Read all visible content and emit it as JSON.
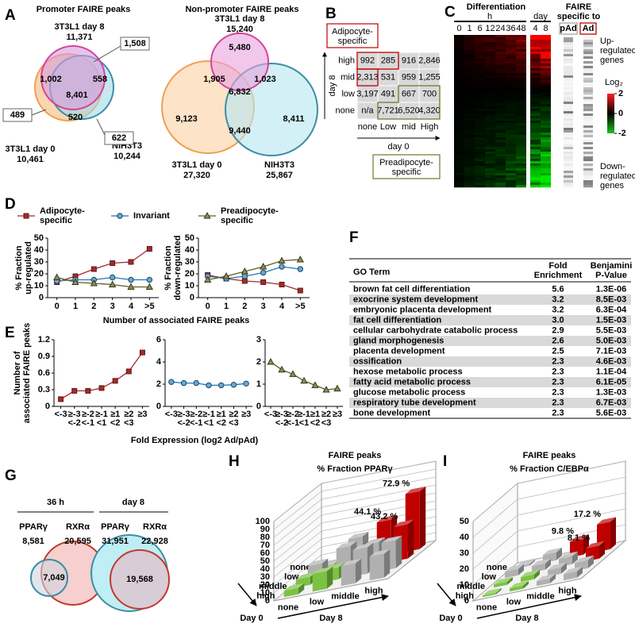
{
  "panel_labels": [
    "A",
    "B",
    "C",
    "D",
    "E",
    "F",
    "G",
    "H",
    "I"
  ],
  "venn_a": {
    "promoter": {
      "title": "Promoter FAIRE peaks",
      "sets": [
        {
          "name": "3T3L1 day 8",
          "count": "11,371"
        },
        {
          "name": "3T3L1 day 0",
          "count": "10,461"
        },
        {
          "name": "NIH3T3",
          "count": "10,244"
        }
      ],
      "regions": [
        "1,508",
        "1,002",
        "558",
        "8,401",
        "489",
        "520",
        "622"
      ]
    },
    "non_promoter": {
      "title": "Non-promoter FAIRE peaks",
      "sets": [
        {
          "name": "3T3L1 day 8",
          "count": "15,240"
        },
        {
          "name": "3T3L1 day 0",
          "count": "27,320"
        },
        {
          "name": "NIH3T3",
          "count": "25,867"
        }
      ],
      "regions": [
        "5,480",
        "1,905",
        "1,023",
        "6,832",
        "9,123",
        "9,440",
        "8,411"
      ]
    }
  },
  "table_b": {
    "row_axis": "day 8",
    "col_axis": "day 0",
    "rows": [
      "high",
      "mid",
      "low",
      "none"
    ],
    "columns": [
      "none",
      "Low",
      "mid",
      "High"
    ],
    "cells": [
      [
        "992",
        "285",
        "916",
        "2,846"
      ],
      [
        "2,313",
        "531",
        "959",
        "1,255"
      ],
      [
        "3,197",
        "491",
        "667",
        "700"
      ],
      [
        "n/a",
        "7,721",
        "6,520",
        "4,320"
      ]
    ],
    "adipocyte_label": "Adipocyte-specific",
    "preadipocyte_label": "Preadipocyte-specific"
  },
  "heatmap_c": {
    "title": "Differentiation",
    "hour_unit": "h",
    "hours": [
      "0",
      "1",
      "6",
      "12",
      "24",
      "36",
      "48"
    ],
    "day_unit": "day",
    "days": [
      "4",
      "8"
    ],
    "faire_title": [
      "FAIRE",
      "specific to"
    ],
    "faire_columns": [
      "pAd",
      "Ad"
    ],
    "top_note": [
      "Up-",
      "regulated",
      "genes"
    ],
    "bottom_note": [
      "Down-",
      "regulated",
      "genes"
    ],
    "colorbar": {
      "label": "Log₂",
      "ticks": [
        2,
        0,
        -2
      ]
    }
  },
  "table_f": {
    "header": [
      [
        "GO Term"
      ],
      [
        "Fold",
        "Enrichment"
      ],
      [
        "Benjamini",
        "P-Value"
      ]
    ],
    "rows": [
      [
        "brown fat cell differentiation",
        "5.6",
        "1.3E-06"
      ],
      [
        "exocrine system development",
        "3.2",
        "8.5E-03"
      ],
      [
        "embryonic placenta development",
        "3.2",
        "6.3E-04"
      ],
      [
        "fat cell differentiation",
        "3.0",
        "1.5E-03"
      ],
      [
        "cellular carbohydrate catabolic process",
        "2.9",
        "5.5E-03"
      ],
      [
        "gland morphogenesis",
        "2.6",
        "5.0E-03"
      ],
      [
        "placenta development",
        "2.5",
        "7.1E-03"
      ],
      [
        "ossification",
        "2.3",
        "4.6E-03"
      ],
      [
        "hexose metabolic process",
        "2.3",
        "1.1E-04"
      ],
      [
        "fatty acid metabolic process",
        "2.3",
        "6.1E-05"
      ],
      [
        "glucose metabolic process",
        "2.3",
        "1.3E-03"
      ],
      [
        "respiratory tube development",
        "2.3",
        "6.7E-03"
      ],
      [
        "bone development",
        "2.3",
        "5.6E-03"
      ]
    ]
  },
  "venn_g": {
    "groups": [
      {
        "title": "36 h",
        "sets": [
          {
            "name": "PPARγ",
            "count": "8,581"
          },
          {
            "name": "RXRα",
            "count": "20,595"
          }
        ],
        "overlap": "7,049"
      },
      {
        "title": "day 8",
        "sets": [
          {
            "name": "PPARγ",
            "count": "31,951"
          },
          {
            "name": "RXRα",
            "count": "22,928"
          }
        ],
        "overlap": "19,568"
      }
    ]
  },
  "chart_data": [
    {
      "type": "line",
      "categories": [
        "0",
        "1",
        "2",
        "3",
        "4",
        ">5"
      ],
      "ylim": [
        0,
        50
      ],
      "yticks": [
        0,
        10,
        20,
        30,
        40,
        50
      ],
      "ylabel": [
        "% Fraction",
        "up-regulated"
      ],
      "xlabel": "Number of associated FAIRE peaks",
      "series": [
        {
          "name": "Adipocyte-specific",
          "color": "#a52a2a",
          "marker": "square",
          "values": [
            13,
            18,
            24,
            29,
            30,
            41
          ]
        },
        {
          "name": "Invariant",
          "color": "#1f78b4",
          "marker": "circle",
          "values": [
            14,
            15,
            15,
            17,
            15,
            15
          ]
        },
        {
          "name": "Preadipocyte-specific",
          "color": "#5c5c1f",
          "marker": "triangle",
          "values": [
            17,
            13,
            12,
            11,
            9,
            9
          ]
        }
      ]
    },
    {
      "type": "line",
      "categories": [
        "0",
        "1",
        "2",
        "3",
        "4",
        ">5"
      ],
      "ylim": [
        0,
        50
      ],
      "yticks": [
        0,
        10,
        20,
        30,
        40,
        50
      ],
      "ylabel": [
        "% Fraction",
        "down-regulated"
      ],
      "series": [
        {
          "color": "#a52a2a",
          "marker": "square",
          "values": [
            19,
            16,
            14,
            13,
            11,
            6
          ]
        },
        {
          "color": "#1f78b4",
          "marker": "circle",
          "values": [
            18,
            16,
            18,
            21,
            26,
            24
          ]
        },
        {
          "color": "#5c5c1f",
          "marker": "triangle",
          "values": [
            15,
            18,
            22,
            26,
            31,
            32
          ]
        }
      ]
    },
    {
      "type": "line",
      "categories": [
        [
          "<-3"
        ],
        [
          "≥-3",
          "<-2"
        ],
        [
          "≥-2",
          "<-1"
        ],
        [
          "≥-1",
          "<1"
        ],
        [
          "≥1",
          "<2"
        ],
        [
          "≥2",
          "<3"
        ],
        [
          "≥3"
        ]
      ],
      "ylim": [
        0,
        1.2
      ],
      "yticks": [
        0,
        0.3,
        0.6,
        0.9,
        1.2
      ],
      "ylabel": [
        "Number of",
        "associated FAIRE peaks"
      ],
      "xlabel": "Fold Expression (log2 Ad/pAd)",
      "series": [
        {
          "color": "#a52a2a",
          "marker": "square",
          "values": [
            0.13,
            0.28,
            0.28,
            0.33,
            0.46,
            0.63,
            0.97
          ]
        }
      ]
    },
    {
      "type": "line",
      "categories": [
        [
          "<-3"
        ],
        [
          "≥-3",
          "<-2"
        ],
        [
          "≥-2",
          "<-1"
        ],
        [
          "≥-1",
          "<1"
        ],
        [
          "≥1",
          "<2"
        ],
        [
          "≥2",
          "<3"
        ],
        [
          "≥3"
        ]
      ],
      "ylim": [
        0,
        6
      ],
      "yticks": [
        0,
        2,
        4,
        6
      ],
      "series": [
        {
          "color": "#1f78b4",
          "marker": "circle",
          "values": [
            2.2,
            2.1,
            2.1,
            1.9,
            1.9,
            1.95,
            2.05
          ]
        }
      ]
    },
    {
      "type": "line",
      "categories": [
        [
          "<-3"
        ],
        [
          "≥-3",
          "<-2"
        ],
        [
          "≥-2",
          "<-1"
        ],
        [
          "≥-1",
          "<1"
        ],
        [
          "≥1",
          "<2"
        ],
        [
          "≥2",
          "<3"
        ],
        [
          "≥3"
        ]
      ],
      "ylim": [
        0,
        3
      ],
      "yticks": [
        0,
        1,
        2,
        3
      ],
      "series": [
        {
          "color": "#5c5c1f",
          "marker": "triangle",
          "values": [
            2.0,
            1.65,
            1.45,
            1.15,
            0.95,
            0.75,
            0.8
          ]
        }
      ]
    },
    {
      "type": "bar3d",
      "title": "FAIRE peaks",
      "subtitle": "% Fraction PPARγ",
      "xlabel": "Day 8",
      "ylabel": "Day 0",
      "categories": [
        "none",
        "low",
        "middle",
        "high"
      ],
      "zlim": [
        0,
        100
      ],
      "zticks": [
        0,
        10,
        20,
        30,
        40,
        50,
        60,
        70,
        80,
        90,
        100
      ],
      "series": [
        {
          "name": "none",
          "values": [
            2,
            30,
            44.1,
            72.9
          ],
          "value_labels": [
            null,
            null,
            "44.1 %",
            "72.9 %"
          ],
          "colors": [
            "#b0b0b0",
            "#b0b0b0",
            "#c00000",
            "#c00000"
          ]
        },
        {
          "name": "low",
          "values": [
            15,
            30,
            28,
            43.2
          ],
          "value_labels": [
            null,
            null,
            null,
            "43.2 %"
          ],
          "colors": [
            "#b0b0b0",
            "#b0b0b0",
            "#b0b0b0",
            "#c00000"
          ]
        },
        {
          "name": "middle",
          "values": [
            10,
            15,
            33,
            35
          ],
          "colors": [
            "#7cc242",
            "#7cc242",
            "#b0b0b0",
            "#b0b0b0"
          ]
        },
        {
          "name": "high",
          "values": [
            8,
            22,
            25,
            30
          ],
          "colors": [
            "#7cc242",
            "#7cc242",
            "#b0b0b0",
            "#b0b0b0"
          ]
        }
      ]
    },
    {
      "type": "bar3d",
      "title": "FAIRE peaks",
      "subtitle": "% Fraction C/EBPα",
      "xlabel": "Day 8",
      "ylabel": "Day 0",
      "categories": [
        "none",
        "low",
        "middle",
        "high"
      ],
      "zlim": [
        0,
        50
      ],
      "zticks": [
        0,
        10,
        20,
        30,
        40,
        50
      ],
      "series": [
        {
          "name": "none",
          "values": [
            1,
            5,
            9.8,
            17.2
          ],
          "value_labels": [
            null,
            null,
            "9.8 %",
            "17.2  %"
          ],
          "colors": [
            "#b0b0b0",
            "#b0b0b0",
            "#c00000",
            "#c00000"
          ]
        },
        {
          "name": "low",
          "values": [
            4,
            4,
            5,
            8.1
          ],
          "value_labels": [
            null,
            null,
            null,
            "8.1 %"
          ],
          "colors": [
            "#b0b0b0",
            "#b0b0b0",
            "#b0b0b0",
            "#c00000"
          ]
        },
        {
          "name": "middle",
          "values": [
            2,
            3,
            4,
            5
          ],
          "colors": [
            "#7cc242",
            "#7cc242",
            "#b0b0b0",
            "#b0b0b0"
          ]
        },
        {
          "name": "high",
          "values": [
            1,
            2,
            3,
            4
          ],
          "colors": [
            "#7cc242",
            "#7cc242",
            "#b0b0b0",
            "#b0b0b0"
          ]
        }
      ]
    }
  ]
}
